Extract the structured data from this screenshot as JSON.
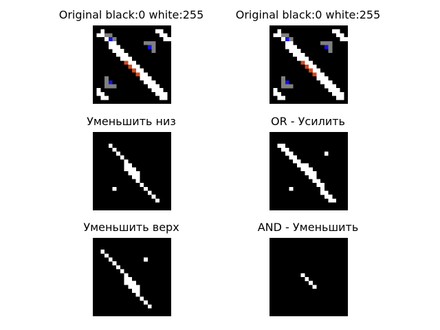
{
  "figure": {
    "background": "#ffffff",
    "panels": [
      {
        "id": "p1",
        "title": "Original black:0 white:255",
        "grid_size": 20,
        "background": "#000000",
        "cells": [
          {
            "c": "#ffffff",
            "p": [
              [
                1,
                2
              ],
              [
                2,
                1
              ],
              [
                2,
                2
              ],
              [
                3,
                3
              ],
              [
                4,
                4
              ],
              [
                4,
                5
              ],
              [
                5,
                4
              ],
              [
                5,
                5
              ],
              [
                5,
                6
              ],
              [
                6,
                5
              ],
              [
                6,
                6
              ],
              [
                6,
                7
              ],
              [
                7,
                6
              ],
              [
                7,
                7
              ],
              [
                7,
                8
              ],
              [
                8,
                7
              ],
              [
                8,
                8
              ],
              [
                8,
                9
              ],
              [
                9,
                8
              ],
              [
                9,
                9
              ],
              [
                9,
                10
              ],
              [
                10,
                9
              ],
              [
                10,
                10
              ],
              [
                10,
                11
              ],
              [
                11,
                10
              ],
              [
                11,
                11
              ],
              [
                11,
                12
              ],
              [
                12,
                11
              ],
              [
                12,
                12
              ],
              [
                12,
                13
              ],
              [
                13,
                12
              ],
              [
                13,
                13
              ],
              [
                13,
                14
              ],
              [
                14,
                13
              ],
              [
                14,
                14
              ],
              [
                14,
                15
              ],
              [
                15,
                14
              ],
              [
                15,
                15
              ],
              [
                15,
                16
              ],
              [
                16,
                15
              ],
              [
                16,
                16
              ],
              [
                16,
                17
              ],
              [
                17,
                16
              ],
              [
                17,
                17
              ],
              [
                17,
                18
              ],
              [
                18,
                17
              ],
              [
                18,
                18
              ],
              [
                1,
                16
              ],
              [
                1,
                17
              ],
              [
                2,
                17
              ],
              [
                2,
                18
              ],
              [
                3,
                18
              ],
              [
                16,
                1
              ],
              [
                17,
                1
              ],
              [
                17,
                2
              ],
              [
                18,
                2
              ],
              [
                18,
                3
              ],
              [
                19,
                3
              ]
            ]
          },
          {
            "c": "#808080",
            "p": [
              [
                3,
                2
              ],
              [
                4,
                2
              ],
              [
                4,
                3
              ],
              [
                5,
                3
              ],
              [
                13,
                4
              ],
              [
                14,
                4
              ],
              [
                15,
                4
              ],
              [
                15,
                5
              ],
              [
                15,
                6
              ],
              [
                3,
                13
              ],
              [
                3,
                14
              ],
              [
                3,
                15
              ],
              [
                4,
                15
              ],
              [
                5,
                15
              ]
            ]
          },
          {
            "c": "#1414e0",
            "p": [
              [
                4,
                3
              ],
              [
                14,
                5
              ],
              [
                4,
                14
              ]
            ]
          },
          {
            "c": "#d24a21",
            "p": [
              [
                8,
                9
              ],
              [
                9,
                10
              ],
              [
                10,
                11
              ],
              [
                11,
                12
              ]
            ]
          }
        ]
      },
      {
        "id": "p2",
        "title": "Original black:0 white:255",
        "grid_size": 20,
        "background": "#000000",
        "cells": [
          {
            "c": "#ffffff",
            "p": [
              [
                1,
                2
              ],
              [
                2,
                1
              ],
              [
                2,
                2
              ],
              [
                3,
                3
              ],
              [
                4,
                4
              ],
              [
                4,
                5
              ],
              [
                5,
                4
              ],
              [
                5,
                5
              ],
              [
                5,
                6
              ],
              [
                6,
                5
              ],
              [
                6,
                6
              ],
              [
                6,
                7
              ],
              [
                7,
                6
              ],
              [
                7,
                7
              ],
              [
                7,
                8
              ],
              [
                8,
                7
              ],
              [
                8,
                8
              ],
              [
                8,
                9
              ],
              [
                9,
                8
              ],
              [
                9,
                9
              ],
              [
                9,
                10
              ],
              [
                10,
                9
              ],
              [
                10,
                10
              ],
              [
                10,
                11
              ],
              [
                11,
                10
              ],
              [
                11,
                11
              ],
              [
                11,
                12
              ],
              [
                12,
                11
              ],
              [
                12,
                12
              ],
              [
                12,
                13
              ],
              [
                13,
                12
              ],
              [
                13,
                13
              ],
              [
                13,
                14
              ],
              [
                14,
                13
              ],
              [
                14,
                14
              ],
              [
                14,
                15
              ],
              [
                15,
                14
              ],
              [
                15,
                15
              ],
              [
                15,
                16
              ],
              [
                16,
                15
              ],
              [
                16,
                16
              ],
              [
                16,
                17
              ],
              [
                17,
                16
              ],
              [
                17,
                17
              ],
              [
                17,
                18
              ],
              [
                18,
                17
              ],
              [
                18,
                18
              ],
              [
                1,
                16
              ],
              [
                1,
                17
              ],
              [
                2,
                17
              ],
              [
                2,
                18
              ],
              [
                3,
                18
              ],
              [
                16,
                1
              ],
              [
                17,
                1
              ],
              [
                17,
                2
              ],
              [
                18,
                2
              ],
              [
                18,
                3
              ],
              [
                19,
                3
              ]
            ]
          },
          {
            "c": "#808080",
            "p": [
              [
                3,
                2
              ],
              [
                4,
                2
              ],
              [
                4,
                3
              ],
              [
                5,
                3
              ],
              [
                13,
                4
              ],
              [
                14,
                4
              ],
              [
                15,
                4
              ],
              [
                15,
                5
              ],
              [
                15,
                6
              ],
              [
                3,
                13
              ],
              [
                3,
                14
              ],
              [
                3,
                15
              ],
              [
                4,
                15
              ],
              [
                5,
                15
              ]
            ]
          },
          {
            "c": "#1414e0",
            "p": [
              [
                4,
                3
              ],
              [
                14,
                5
              ],
              [
                4,
                14
              ]
            ]
          },
          {
            "c": "#d24a21",
            "p": [
              [
                8,
                9
              ],
              [
                9,
                10
              ],
              [
                10,
                11
              ],
              [
                11,
                12
              ]
            ]
          }
        ]
      },
      {
        "id": "p3",
        "title": "Уменьшить низ",
        "grid_size": 20,
        "background": "#000000",
        "cells": [
          {
            "c": "#ffffff",
            "p": [
              [
                4,
                3
              ],
              [
                5,
                4
              ],
              [
                6,
                5
              ],
              [
                7,
                6
              ],
              [
                8,
                7
              ],
              [
                8,
                8
              ],
              [
                9,
                8
              ],
              [
                8,
                9
              ],
              [
                9,
                9
              ],
              [
                9,
                10
              ],
              [
                10,
                9
              ],
              [
                10,
                10
              ],
              [
                10,
                11
              ],
              [
                11,
                10
              ],
              [
                11,
                11
              ],
              [
                11,
                12
              ],
              [
                12,
                13
              ],
              [
                13,
                14
              ],
              [
                14,
                15
              ],
              [
                15,
                16
              ],
              [
                16,
                17
              ],
              [
                5,
                14
              ]
            ]
          }
        ]
      },
      {
        "id": "p4",
        "title": "OR - Усилить",
        "grid_size": 20,
        "background": "#000000",
        "cells": [
          {
            "c": "#ffffff",
            "p": [
              [
                2,
                3
              ],
              [
                3,
                3
              ],
              [
                3,
                4
              ],
              [
                4,
                4
              ],
              [
                4,
                5
              ],
              [
                5,
                5
              ],
              [
                5,
                6
              ],
              [
                6,
                6
              ],
              [
                6,
                7
              ],
              [
                7,
                7
              ],
              [
                7,
                8
              ],
              [
                8,
                8
              ],
              [
                8,
                9
              ],
              [
                9,
                8
              ],
              [
                9,
                9
              ],
              [
                9,
                10
              ],
              [
                10,
                9
              ],
              [
                10,
                10
              ],
              [
                10,
                11
              ],
              [
                11,
                10
              ],
              [
                11,
                11
              ],
              [
                11,
                12
              ],
              [
                12,
                12
              ],
              [
                12,
                13
              ],
              [
                13,
                13
              ],
              [
                13,
                14
              ],
              [
                13,
                15
              ],
              [
                14,
                15
              ],
              [
                14,
                16
              ],
              [
                15,
                16
              ],
              [
                15,
                17
              ],
              [
                16,
                17
              ],
              [
                14,
                5
              ],
              [
                5,
                14
              ]
            ]
          }
        ]
      },
      {
        "id": "p5",
        "title": "Уменьшить верх",
        "grid_size": 20,
        "background": "#000000",
        "cells": [
          {
            "c": "#ffffff",
            "p": [
              [
                2,
                3
              ],
              [
                3,
                4
              ],
              [
                4,
                5
              ],
              [
                5,
                6
              ],
              [
                6,
                7
              ],
              [
                7,
                8
              ],
              [
                8,
                9
              ],
              [
                8,
                10
              ],
              [
                9,
                10
              ],
              [
                8,
                11
              ],
              [
                9,
                11
              ],
              [
                10,
                11
              ],
              [
                9,
                12
              ],
              [
                10,
                12
              ],
              [
                11,
                12
              ],
              [
                10,
                13
              ],
              [
                11,
                13
              ],
              [
                11,
                14
              ],
              [
                12,
                15
              ],
              [
                13,
                16
              ],
              [
                14,
                17
              ],
              [
                13,
                5
              ]
            ]
          }
        ]
      },
      {
        "id": "p6",
        "title": "AND - Уменьшить",
        "grid_size": 20,
        "background": "#000000",
        "cells": [
          {
            "c": "#ffffff",
            "p": [
              [
                8,
                9
              ],
              [
                9,
                10
              ],
              [
                10,
                11
              ],
              [
                11,
                12
              ]
            ]
          }
        ]
      }
    ]
  }
}
